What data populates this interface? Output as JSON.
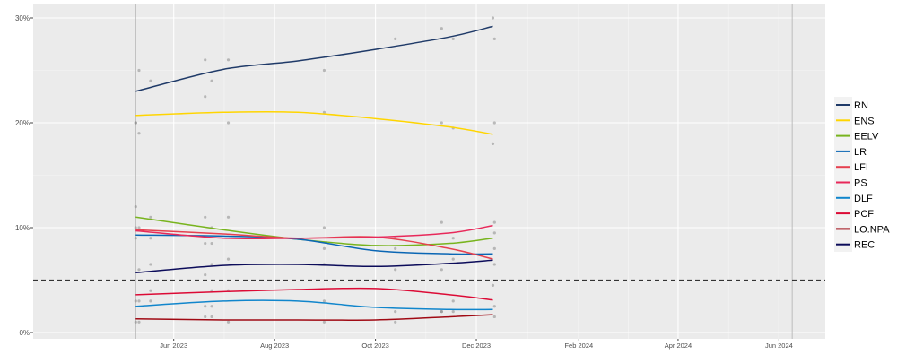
{
  "chart_data": {
    "type": "line",
    "title": "",
    "xlabel": "",
    "ylabel": "",
    "xlim": [
      "2023-03-08",
      "2024-06-29"
    ],
    "ylim": [
      0,
      30.5
    ],
    "grid": true,
    "legend_position": "right",
    "y_ticks": [
      {
        "value": 0,
        "label": "0%"
      },
      {
        "value": 10,
        "label": "10%"
      },
      {
        "value": 20,
        "label": "20%"
      },
      {
        "value": 30,
        "label": "30%"
      }
    ],
    "x_ticks": [
      {
        "date": "2023-06-01",
        "label": "Jun 2023"
      },
      {
        "date": "2023-08-01",
        "label": "Aug 2023"
      },
      {
        "date": "2023-10-01",
        "label": "Oct 2023"
      },
      {
        "date": "2023-12-01",
        "label": "Dec 2023"
      },
      {
        "date": "2024-02-01",
        "label": "Feb 2024"
      },
      {
        "date": "2024-04-01",
        "label": "Apr 2024"
      },
      {
        "date": "2024-06-01",
        "label": "Jun 2024"
      }
    ],
    "vertical_lines": [
      "2023-05-09",
      "2024-06-09"
    ],
    "threshold": {
      "value": 5,
      "style": "dashed"
    },
    "curve_dates": [
      "2023-05-09",
      "2023-07-01",
      "2023-08-15",
      "2023-10-01",
      "2023-11-15",
      "2023-12-11"
    ],
    "series": [
      {
        "name": "RN",
        "color": "#1f3a68",
        "values": [
          23.0,
          25.1,
          25.9,
          27.0,
          28.2,
          29.2
        ]
      },
      {
        "name": "ENS",
        "color": "#ffd500",
        "values": [
          20.7,
          21.0,
          21.0,
          20.4,
          19.6,
          18.9
        ]
      },
      {
        "name": "EELV",
        "color": "#78b41e",
        "values": [
          11.0,
          9.8,
          8.9,
          8.3,
          8.5,
          9.0
        ]
      },
      {
        "name": "LR",
        "color": "#0a66b4",
        "values": [
          9.3,
          9.2,
          8.9,
          7.8,
          7.5,
          7.5
        ]
      },
      {
        "name": "LFI",
        "color": "#e6404f",
        "values": [
          9.8,
          9.4,
          9.0,
          9.1,
          8.0,
          7.0
        ]
      },
      {
        "name": "PS",
        "color": "#e8285a",
        "values": [
          9.7,
          9.0,
          9.0,
          9.1,
          9.5,
          10.2
        ]
      },
      {
        "name": "DLF",
        "color": "#1186cc",
        "values": [
          2.5,
          3.0,
          3.0,
          2.4,
          2.2,
          2.2
        ]
      },
      {
        "name": "PCF",
        "color": "#dc0a35",
        "values": [
          3.6,
          3.9,
          4.1,
          4.2,
          3.6,
          3.1
        ]
      },
      {
        "name": "LO.NPA",
        "color": "#a00a14",
        "values": [
          1.3,
          1.2,
          1.2,
          1.2,
          1.5,
          1.7
        ]
      },
      {
        "name": "REC",
        "color": "#0c0c5a",
        "values": [
          5.7,
          6.4,
          6.5,
          6.3,
          6.6,
          6.9
        ]
      }
    ],
    "poll_points": [
      {
        "series": "RN",
        "points": [
          [
            "2023-05-09",
            20
          ],
          [
            "2023-05-11",
            25
          ],
          [
            "2023-05-18",
            24
          ],
          [
            "2023-06-20",
            26
          ],
          [
            "2023-06-24",
            24
          ],
          [
            "2023-07-04",
            26
          ],
          [
            "2023-08-31",
            25
          ],
          [
            "2023-10-13",
            28
          ],
          [
            "2023-11-10",
            29
          ],
          [
            "2023-11-17",
            28
          ],
          [
            "2023-12-11",
            30
          ],
          [
            "2023-12-12",
            28
          ]
        ]
      },
      {
        "series": "ENS",
        "points": [
          [
            "2023-05-09",
            20
          ],
          [
            "2023-05-11",
            19
          ],
          [
            "2023-06-20",
            22.5
          ],
          [
            "2023-07-04",
            20
          ],
          [
            "2023-08-31",
            21
          ],
          [
            "2023-11-10",
            20
          ],
          [
            "2023-11-17",
            19.5
          ],
          [
            "2023-12-12",
            20
          ],
          [
            "2023-12-11",
            18
          ]
        ]
      },
      {
        "series": "EELV",
        "points": [
          [
            "2023-05-09",
            12
          ],
          [
            "2023-05-18",
            11
          ],
          [
            "2023-06-20",
            11
          ],
          [
            "2023-07-04",
            11
          ],
          [
            "2023-11-10",
            10.5
          ],
          [
            "2023-12-12",
            9.5
          ]
        ]
      },
      {
        "series": "LR",
        "points": [
          [
            "2023-05-09",
            9
          ],
          [
            "2023-05-18",
            9
          ],
          [
            "2023-06-20",
            8.5
          ],
          [
            "2023-06-24",
            10
          ],
          [
            "2023-08-31",
            8
          ],
          [
            "2023-10-13",
            8
          ],
          [
            "2023-12-12",
            8
          ]
        ]
      },
      {
        "series": "PS",
        "points": [
          [
            "2023-05-09",
            10
          ],
          [
            "2023-05-11",
            10
          ],
          [
            "2023-06-24",
            8.5
          ],
          [
            "2023-08-31",
            10
          ],
          [
            "2023-10-13",
            9
          ],
          [
            "2023-11-17",
            9
          ],
          [
            "2023-12-12",
            10.5
          ]
        ]
      },
      {
        "series": "REC",
        "points": [
          [
            "2023-05-11",
            6
          ],
          [
            "2023-05-18",
            6.5
          ],
          [
            "2023-06-20",
            5.5
          ],
          [
            "2023-06-24",
            6.5
          ],
          [
            "2023-07-04",
            7
          ],
          [
            "2023-08-31",
            6.5
          ],
          [
            "2023-10-13",
            6
          ],
          [
            "2023-11-10",
            6
          ],
          [
            "2023-11-17",
            7
          ],
          [
            "2023-12-12",
            6.5
          ]
        ]
      },
      {
        "series": "PCF",
        "points": [
          [
            "2023-05-09",
            3
          ],
          [
            "2023-05-18",
            4
          ],
          [
            "2023-06-24",
            4
          ],
          [
            "2023-07-04",
            4
          ],
          [
            "2023-11-17",
            3
          ],
          [
            "2023-12-11",
            4.5
          ]
        ]
      },
      {
        "series": "DLF",
        "points": [
          [
            "2023-05-11",
            3
          ],
          [
            "2023-05-18",
            3
          ],
          [
            "2023-06-20",
            2.5
          ],
          [
            "2023-06-24",
            2.5
          ],
          [
            "2023-08-31",
            3
          ],
          [
            "2023-10-13",
            2
          ],
          [
            "2023-11-10",
            2
          ],
          [
            "2023-12-12",
            2.5
          ]
        ]
      },
      {
        "series": "LO.NPA",
        "points": [
          [
            "2023-05-09",
            1
          ],
          [
            "2023-05-11",
            1
          ],
          [
            "2023-06-20",
            1.5
          ],
          [
            "2023-06-24",
            1.5
          ],
          [
            "2023-07-04",
            1
          ],
          [
            "2023-08-31",
            1
          ],
          [
            "2023-10-13",
            1
          ],
          [
            "2023-11-10",
            2
          ],
          [
            "2023-11-17",
            2
          ],
          [
            "2023-12-12",
            1.5
          ]
        ]
      }
    ]
  }
}
